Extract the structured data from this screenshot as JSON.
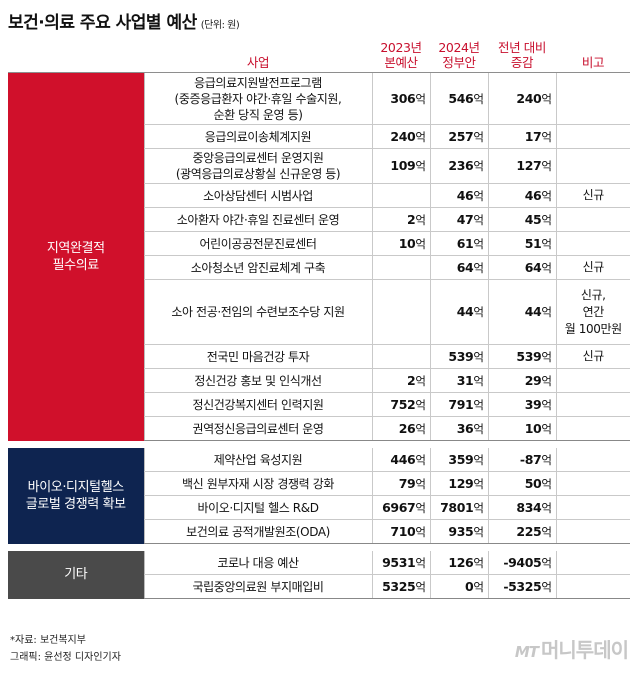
{
  "title": "보건·의료 주요 사업별 예산",
  "unit": "(단위: 원)",
  "headers": {
    "project": "사업",
    "budget_2023": [
      "2023년",
      "본예산"
    ],
    "budget_2024": [
      "2024년",
      "정부안"
    ],
    "change": [
      "전년 대비",
      "증감"
    ],
    "note": "비고"
  },
  "categories": [
    {
      "name": [
        "지역완결적",
        "필수의료"
      ],
      "color": "#d0102b"
    },
    {
      "name": [
        "바이오·디지털헬스",
        "글로벌 경쟁력 확보"
      ],
      "color": "#0e2450"
    },
    {
      "name": [
        "기타"
      ],
      "color": "#4a4a4a"
    }
  ],
  "rows": [
    {
      "name": [
        "응급의료지원발전프로그램",
        "(중증응급환자 야간·휴일 수술지원,",
        "순환 당직 운영 등)"
      ],
      "b2023": "306",
      "b2024": "546",
      "diff": "240",
      "note": []
    },
    {
      "name": [
        "응급의료이송체계지원"
      ],
      "b2023": "240",
      "b2024": "257",
      "diff": "17",
      "note": []
    },
    {
      "name": [
        "중앙응급의료센터 운영지원",
        "(광역응급의료상황실 신규운영 등)"
      ],
      "b2023": "109",
      "b2024": "236",
      "diff": "127",
      "note": []
    },
    {
      "name": [
        "소아상담센터 시범사업"
      ],
      "b2023": "",
      "b2024": "46",
      "diff": "46",
      "note": [
        "신규"
      ]
    },
    {
      "name": [
        "소아환자 야간·휴일 진료센터 운영"
      ],
      "b2023": "2",
      "b2024": "47",
      "diff": "45",
      "note": []
    },
    {
      "name": [
        "어린이공공전문진료센터"
      ],
      "b2023": "10",
      "b2024": "61",
      "diff": "51",
      "note": []
    },
    {
      "name": [
        "소아청소년 암진료체계 구축"
      ],
      "b2023": "",
      "b2024": "64",
      "diff": "64",
      "note": [
        "신규"
      ]
    },
    {
      "name": [
        "소아 전공·전임의 수련보조수당 지원"
      ],
      "b2023": "",
      "b2024": "44",
      "diff": "44",
      "note": [
        "신규,",
        "연간",
        "월 100만원"
      ]
    },
    {
      "name": [
        "전국민 마음건강 투자"
      ],
      "b2023": "",
      "b2024": "539",
      "diff": "539",
      "note": [
        "신규"
      ]
    },
    {
      "name": [
        "정신건강 홍보 및 인식개선"
      ],
      "b2023": "2",
      "b2024": "31",
      "diff": "29",
      "note": []
    },
    {
      "name": [
        "정신건강복지센터 인력지원"
      ],
      "b2023": "752",
      "b2024": "791",
      "diff": "39",
      "note": []
    },
    {
      "name": [
        "권역정신응급의료센터 운영"
      ],
      "b2023": "26",
      "b2024": "36",
      "diff": "10",
      "note": []
    },
    {
      "name": [
        "제약산업 육성지원"
      ],
      "b2023": "446",
      "b2024": "359",
      "diff": "-87",
      "note": []
    },
    {
      "name": [
        "백신 원부자재 시장 경쟁력 강화"
      ],
      "b2023": "79",
      "b2024": "129",
      "diff": "50",
      "note": []
    },
    {
      "name": [
        "바이오·디지털 헬스 R&D"
      ],
      "b2023": "6967",
      "b2024": "7801",
      "diff": "834",
      "note": []
    },
    {
      "name": [
        "보건의료 공적개발원조(ODA)"
      ],
      "b2023": "710",
      "b2024": "935",
      "diff": "225",
      "note": []
    },
    {
      "name": [
        "코로나 대응 예산"
      ],
      "b2023": "9531",
      "b2024": "126",
      "diff": "-9405",
      "note": []
    },
    {
      "name": [
        "국립중앙의료원 부지매입비"
      ],
      "b2023": "5325",
      "b2024": "0",
      "diff": "-5325",
      "note": []
    }
  ],
  "eok_suffix": "억",
  "footer": {
    "source": "*자료: 보건복지부",
    "credit": "그래픽: 윤선정 디자인기자"
  },
  "logo": {
    "mark": "MT",
    "text": "머니투데이"
  }
}
